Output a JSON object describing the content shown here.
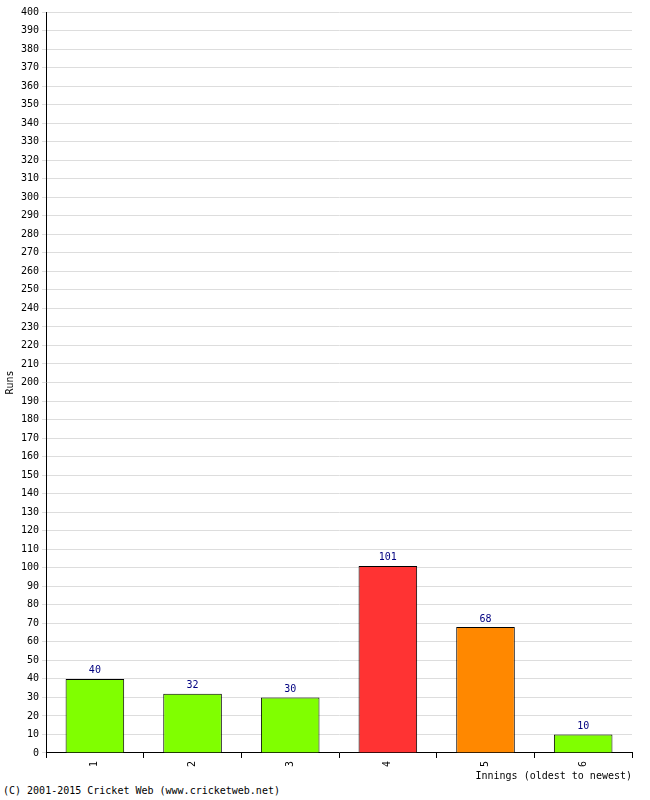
{
  "chart_data": {
    "type": "bar",
    "categories": [
      "1",
      "2",
      "3",
      "4",
      "5",
      "6"
    ],
    "values": [
      40,
      32,
      30,
      101,
      68,
      10
    ],
    "colors": [
      "#80ff00",
      "#80ff00",
      "#80ff00",
      "#ff3333",
      "#ff8800",
      "#80ff00"
    ],
    "x_label": "Innings (oldest to newest)",
    "y_label": "Runs",
    "ylim": [
      0,
      400
    ],
    "yticks": [
      0,
      10,
      20,
      30,
      40,
      50,
      60,
      70,
      80,
      90,
      100,
      110,
      120,
      130,
      140,
      150,
      160,
      170,
      180,
      190,
      200,
      210,
      220,
      230,
      240,
      250,
      260,
      270,
      280,
      290,
      300,
      310,
      320,
      330,
      340,
      350,
      360,
      370,
      380,
      390,
      400
    ],
    "grid": true,
    "data_labels": true,
    "annotations": [
      "(C) 2001-2015 Cricket Web (www.cricketweb.net)"
    ]
  }
}
